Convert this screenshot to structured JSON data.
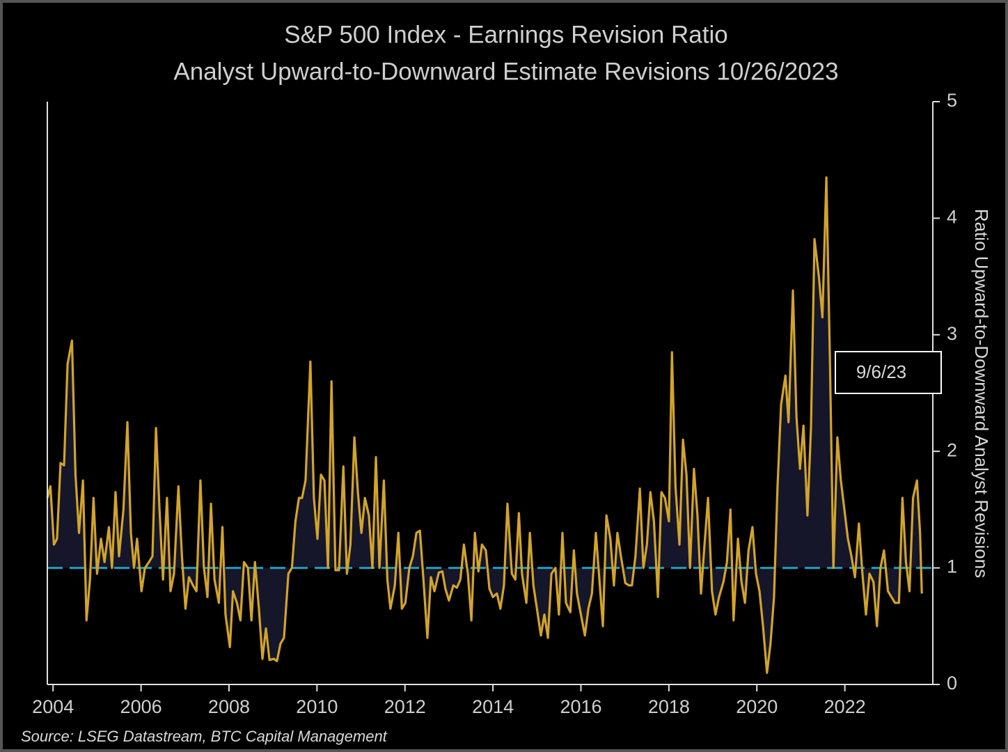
{
  "chart_data": {
    "type": "line",
    "title": "S&P 500 Index - Earnings Revision Ratio",
    "subtitle": "Analyst Upward-to-Downward Estimate Revisions 10/26/2023",
    "ylabel": "Ratio Upward-to-Downward Analyst Revisions",
    "source": "Source: LSEG Datastream, BTC Capital Management",
    "annotation": "9/6/23",
    "reference_line": 1,
    "xlim": [
      2003.87,
      2024.0
    ],
    "xticks": [
      2004,
      2006,
      2008,
      2010,
      2012,
      2014,
      2016,
      2018,
      2020,
      2022
    ],
    "ylim": [
      0,
      5
    ],
    "yticks": [
      0,
      1,
      2,
      3,
      4,
      5
    ],
    "series": [
      {
        "name": "Ratio",
        "color": "#d2a42a",
        "fill": "#15162a",
        "x": [
          2003.87,
          2003.94,
          2004.02,
          2004.09,
          2004.17,
          2004.25,
          2004.33,
          2004.43,
          2004.51,
          2004.59,
          2004.68,
          2004.76,
          2004.84,
          2004.92,
          2005.0,
          2005.09,
          2005.17,
          2005.27,
          2005.34,
          2005.42,
          2005.5,
          2005.6,
          2005.69,
          2005.77,
          2005.84,
          2005.91,
          2006.01,
          2006.09,
          2006.18,
          2006.26,
          2006.34,
          2006.42,
          2006.5,
          2006.59,
          2006.67,
          2006.75,
          2006.85,
          2006.93,
          2007.01,
          2007.09,
          2007.18,
          2007.26,
          2007.35,
          2007.43,
          2007.51,
          2007.59,
          2007.67,
          2007.77,
          2007.85,
          2007.92,
          2008.02,
          2008.09,
          2008.18,
          2008.26,
          2008.34,
          2008.43,
          2008.51,
          2008.59,
          2008.68,
          2008.76,
          2008.84,
          2008.92,
          2009.02,
          2009.09,
          2009.17,
          2009.25,
          2009.35,
          2009.43,
          2009.51,
          2009.59,
          2009.66,
          2009.74,
          2009.85,
          2009.93,
          2010.01,
          2010.09,
          2010.17,
          2010.25,
          2010.33,
          2010.42,
          2010.5,
          2010.6,
          2010.68,
          2010.76,
          2010.85,
          2010.93,
          2011.01,
          2011.09,
          2011.18,
          2011.26,
          2011.34,
          2011.42,
          2011.52,
          2011.6,
          2011.67,
          2011.77,
          2011.85,
          2011.93,
          2012.01,
          2012.1,
          2012.18,
          2012.26,
          2012.34,
          2012.42,
          2012.51,
          2012.59,
          2012.67,
          2012.77,
          2012.85,
          2012.92,
          2013.0,
          2013.1,
          2013.18,
          2013.26,
          2013.34,
          2013.43,
          2013.51,
          2013.59,
          2013.67,
          2013.75,
          2013.84,
          2013.92,
          2014.0,
          2014.09,
          2014.17,
          2014.25,
          2014.33,
          2014.43,
          2014.51,
          2014.59,
          2014.66,
          2014.76,
          2014.84,
          2014.92,
          2015.0,
          2015.09,
          2015.17,
          2015.25,
          2015.33,
          2015.42,
          2015.5,
          2015.58,
          2015.66,
          2015.76,
          2015.84,
          2015.91,
          2016.01,
          2016.09,
          2016.17,
          2016.25,
          2016.34,
          2016.42,
          2016.5,
          2016.58,
          2016.67,
          2016.75,
          2016.83,
          2016.91,
          2017.01,
          2017.09,
          2017.16,
          2017.24,
          2017.34,
          2017.42,
          2017.5,
          2017.58,
          2017.66,
          2017.75,
          2017.83,
          2017.91,
          2018.0,
          2018.07,
          2018.15,
          2018.24,
          2018.32,
          2018.4,
          2018.48,
          2018.57,
          2018.65,
          2018.73,
          2018.81,
          2018.89,
          2018.98,
          2019.06,
          2019.14,
          2019.24,
          2019.32,
          2019.4,
          2019.47,
          2019.57,
          2019.65,
          2019.73,
          2019.81,
          2019.9,
          2019.98,
          2020.06,
          2020.14,
          2020.23,
          2020.31,
          2020.39,
          2020.47,
          2020.55,
          2020.65,
          2020.72,
          2020.82,
          2020.9,
          2020.98,
          2021.06,
          2021.15,
          2021.23,
          2021.31,
          2021.41,
          2021.49,
          2021.58,
          2021.66,
          2021.74,
          2021.83,
          2021.91,
          2021.99,
          2022.07,
          2022.15,
          2022.23,
          2022.32,
          2022.4,
          2022.48,
          2022.56,
          2022.65,
          2022.73,
          2022.81,
          2022.89,
          2022.98,
          2023.06,
          2023.14,
          2023.23,
          2023.31,
          2023.39,
          2023.47,
          2023.55,
          2023.64,
          2023.71,
          2023.75
        ],
        "values": [
          1.6,
          1.7,
          1.2,
          1.25,
          1.9,
          1.88,
          2.75,
          2.95,
          1.8,
          1.3,
          1.75,
          0.55,
          0.9,
          1.6,
          0.95,
          1.25,
          1.05,
          1.35,
          1.0,
          1.65,
          1.1,
          1.5,
          2.25,
          1.3,
          1.0,
          1.25,
          0.8,
          1.0,
          1.05,
          1.1,
          2.2,
          1.5,
          0.9,
          1.6,
          0.8,
          0.95,
          1.7,
          1.1,
          0.65,
          0.92,
          0.85,
          0.8,
          1.75,
          1.0,
          0.75,
          1.55,
          0.9,
          0.7,
          1.35,
          0.6,
          0.32,
          0.8,
          0.7,
          0.55,
          1.05,
          1.0,
          0.55,
          1.05,
          0.65,
          0.22,
          0.48,
          0.21,
          0.22,
          0.2,
          0.35,
          0.4,
          0.95,
          1.0,
          1.4,
          1.6,
          1.6,
          1.75,
          2.77,
          1.6,
          1.25,
          1.8,
          1.75,
          1.0,
          2.6,
          0.98,
          0.98,
          1.87,
          0.95,
          1.2,
          2.12,
          1.65,
          1.3,
          1.6,
          1.45,
          1.0,
          1.95,
          1.0,
          1.75,
          0.9,
          0.65,
          0.85,
          1.3,
          0.65,
          0.7,
          1.0,
          1.1,
          1.3,
          1.32,
          0.9,
          0.4,
          0.92,
          0.8,
          0.96,
          0.97,
          0.82,
          0.72,
          0.85,
          0.83,
          0.9,
          1.2,
          0.95,
          0.55,
          1.3,
          0.97,
          1.2,
          1.15,
          0.82,
          0.75,
          0.78,
          0.65,
          0.85,
          1.55,
          0.95,
          0.9,
          1.47,
          0.95,
          0.7,
          1.3,
          0.85,
          0.65,
          0.42,
          0.6,
          0.4,
          0.95,
          1.0,
          0.6,
          1.3,
          0.7,
          0.62,
          1.15,
          0.78,
          0.58,
          0.42,
          0.65,
          0.78,
          1.3,
          0.9,
          0.5,
          1.45,
          1.25,
          0.85,
          1.3,
          1.1,
          0.87,
          0.85,
          0.85,
          1.1,
          1.68,
          1.0,
          1.2,
          1.65,
          1.4,
          0.75,
          1.65,
          1.6,
          1.4,
          2.85,
          1.7,
          1.2,
          2.1,
          1.8,
          1.0,
          1.85,
          1.45,
          0.78,
          1.2,
          1.6,
          0.8,
          0.6,
          0.75,
          0.88,
          1.05,
          1.5,
          0.55,
          1.25,
          0.88,
          0.7,
          1.15,
          1.35,
          0.95,
          0.8,
          0.5,
          0.1,
          0.35,
          0.75,
          1.7,
          2.4,
          2.65,
          2.25,
          3.38,
          2.3,
          1.85,
          2.22,
          1.45,
          2.2,
          3.82,
          3.5,
          3.15,
          4.35,
          2.8,
          1.0,
          2.12,
          1.75,
          1.5,
          1.25,
          1.1,
          0.92,
          1.38,
          0.95,
          0.6,
          0.95,
          0.88,
          0.5,
          1.0,
          1.15,
          0.8,
          0.75,
          0.7,
          0.7,
          1.6,
          1.05,
          0.8,
          1.6,
          1.75,
          1.3,
          0.78
        ]
      }
    ]
  }
}
